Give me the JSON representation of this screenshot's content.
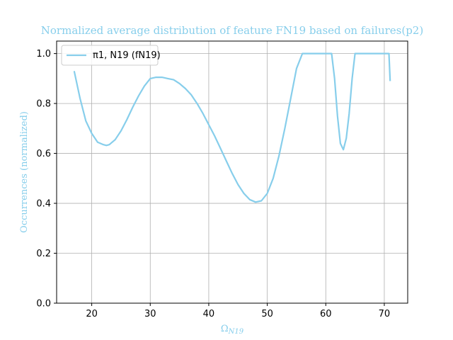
{
  "chart_data": {
    "type": "line",
    "title": "Normalized average distribution of feature FN19 based on failures(p2)",
    "xlabel": "Ω",
    "xlabel_sub": "N19",
    "ylabel": "Occurrences (normalized)",
    "xlim": [
      14,
      74
    ],
    "ylim": [
      0,
      1.05
    ],
    "x_ticks": [
      20,
      30,
      40,
      50,
      60,
      70
    ],
    "y_ticks": [
      0.0,
      0.2,
      0.4,
      0.6,
      0.8,
      1.0
    ],
    "grid": true,
    "legend_position": "top-left",
    "legend": {
      "text": "π1, N19 (fN19)"
    },
    "series": [
      {
        "name": "π1, N19 (fN19)",
        "color": "#87ceeb",
        "x": [
          17,
          18,
          19,
          20,
          21,
          22,
          22.5,
          23,
          24,
          25,
          26,
          27,
          28,
          29,
          30,
          31,
          32,
          33,
          34,
          35,
          36,
          37,
          38,
          39,
          40,
          41,
          42,
          43,
          44,
          45,
          46,
          47,
          48,
          49,
          50,
          51,
          52,
          53,
          54,
          55,
          56,
          57,
          58,
          59,
          60,
          61,
          61.5,
          62,
          62.5,
          63,
          63.5,
          64,
          64.5,
          65,
          65.5,
          66,
          67,
          68,
          69,
          70,
          70.8,
          71
        ],
        "y": [
          0.93,
          0.82,
          0.73,
          0.68,
          0.645,
          0.635,
          0.632,
          0.635,
          0.655,
          0.69,
          0.735,
          0.785,
          0.83,
          0.87,
          0.9,
          0.905,
          0.905,
          0.9,
          0.895,
          0.88,
          0.86,
          0.835,
          0.8,
          0.76,
          0.715,
          0.67,
          0.62,
          0.57,
          0.52,
          0.475,
          0.44,
          0.415,
          0.405,
          0.41,
          0.44,
          0.5,
          0.59,
          0.7,
          0.82,
          0.94,
          1.0,
          1.0,
          1.0,
          1.0,
          1.0,
          1.0,
          0.9,
          0.75,
          0.64,
          0.615,
          0.66,
          0.76,
          0.9,
          1.0,
          1.0,
          1.0,
          1.0,
          1.0,
          1.0,
          1.0,
          1.0,
          0.89
        ]
      }
    ]
  }
}
